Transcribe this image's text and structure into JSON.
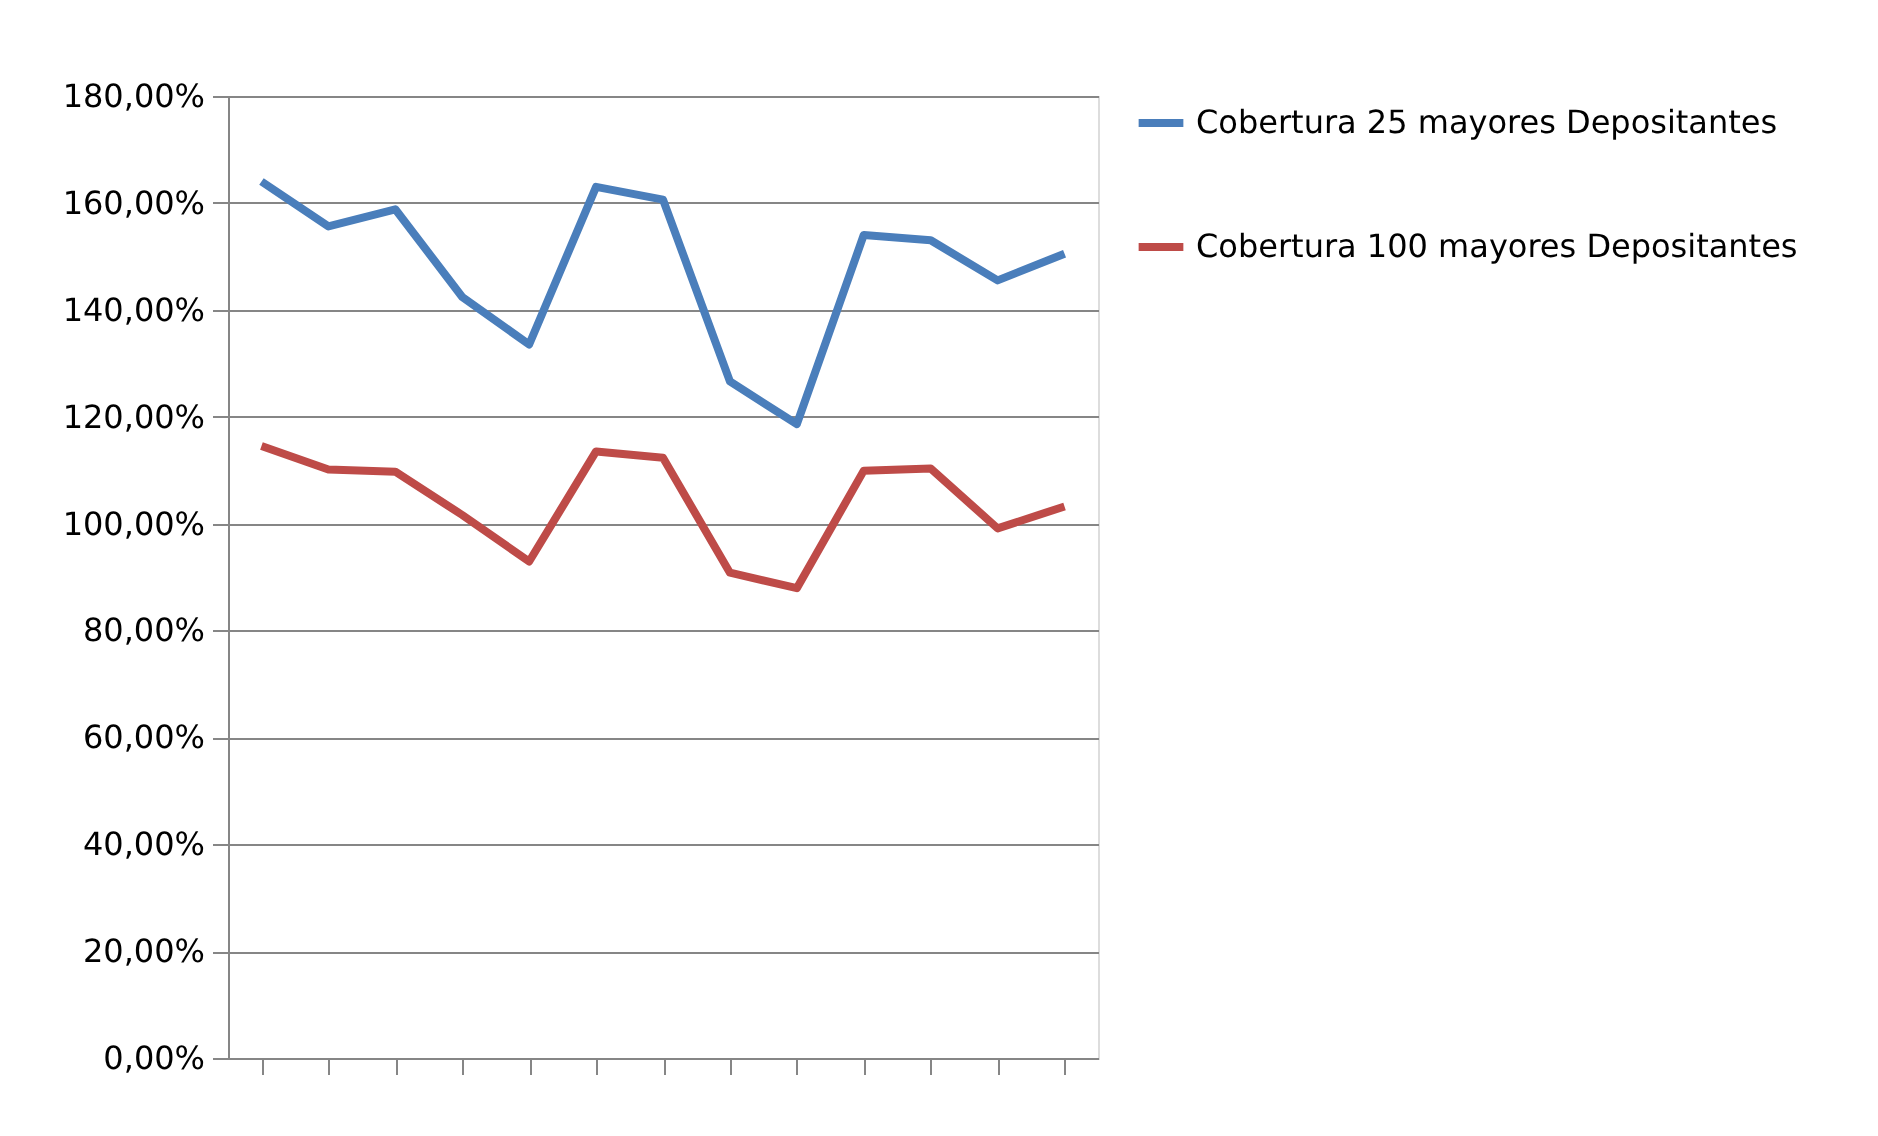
{
  "chart_data": {
    "type": "line",
    "categories": [
      null,
      null,
      null,
      null,
      null,
      null,
      null,
      null,
      null,
      null,
      null,
      null,
      null
    ],
    "series": [
      {
        "name": "Cobertura 25 mayores Depositantes",
        "color": "#4a7ebb",
        "values": [
          164.0,
          155.6,
          158.8,
          142.4,
          133.5,
          163.0,
          160.6,
          126.6,
          118.6,
          154.0,
          153.0,
          145.5,
          150.5
        ]
      },
      {
        "name": "Cobertura 100 mayores Depositantes",
        "color": "#be4b48",
        "values": [
          114.5,
          110.1,
          109.7,
          101.6,
          92.9,
          113.5,
          112.3,
          90.8,
          87.9,
          109.9,
          110.3,
          99.1,
          103.2
        ]
      }
    ],
    "ylim": [
      0,
      180
    ],
    "yticks": [
      {
        "value": 0,
        "label": "0,00%"
      },
      {
        "value": 20,
        "label": "20,00%"
      },
      {
        "value": 40,
        "label": "40,00%"
      },
      {
        "value": 60,
        "label": "60,00%"
      },
      {
        "value": 80,
        "label": "80,00%"
      },
      {
        "value": 100,
        "label": "100,00%"
      },
      {
        "value": 120,
        "label": "120,00%"
      },
      {
        "value": 140,
        "label": "140,00%"
      },
      {
        "value": 160,
        "label": "160,00%"
      },
      {
        "value": 180,
        "label": "180,00%"
      }
    ],
    "grid": "y",
    "legend": "right",
    "tick_labels": "y"
  }
}
